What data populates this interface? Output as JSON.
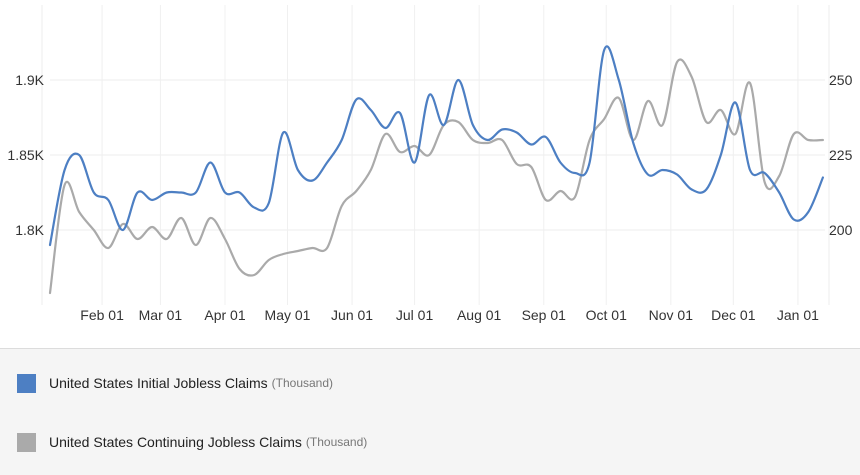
{
  "chart_data": {
    "type": "line",
    "title": "",
    "xlabel": "",
    "ylabel": "",
    "grid": true,
    "x_tick_labels": [
      "Feb 01",
      "Mar 01",
      "Apr 01",
      "May 01",
      "Jun 01",
      "Jul 01",
      "Aug 01",
      "Sep 01",
      "Oct 01",
      "Nov 01",
      "Dec 01",
      "Jan 01"
    ],
    "x_ticks": [
      "2023-02-01",
      "2023-03-01",
      "2023-04-01",
      "2023-05-01",
      "2023-06-01",
      "2023-07-01",
      "2023-08-01",
      "2023-09-01",
      "2023-10-01",
      "2023-11-01",
      "2023-12-01",
      "2024-01-01"
    ],
    "x_range": [
      "2023-01-07",
      "2024-01-14"
    ],
    "left_axis": {
      "ylim": [
        1.75,
        1.95
      ],
      "ticks": [
        1.8,
        1.85,
        1.9
      ],
      "tick_labels": [
        "1.8K",
        "1.85K",
        "1.9K"
      ]
    },
    "right_axis": {
      "ylim": [
        175,
        275
      ],
      "ticks": [
        200,
        225,
        250
      ],
      "tick_labels": [
        "200",
        "225",
        "250"
      ]
    },
    "series": [
      {
        "name": "United States Initial Jobless Claims",
        "unit": "(Thousand)",
        "axis": "left",
        "color": "#4d7fc3",
        "dates": [
          "2023-01-07",
          "2023-01-14",
          "2023-01-21",
          "2023-01-28",
          "2023-02-04",
          "2023-02-11",
          "2023-02-18",
          "2023-02-25",
          "2023-03-04",
          "2023-03-11",
          "2023-03-18",
          "2023-03-25",
          "2023-04-01",
          "2023-04-08",
          "2023-04-15",
          "2023-04-22",
          "2023-04-29",
          "2023-05-06",
          "2023-05-13",
          "2023-05-20",
          "2023-05-27",
          "2023-06-03",
          "2023-06-10",
          "2023-06-17",
          "2023-06-24",
          "2023-07-01",
          "2023-07-08",
          "2023-07-15",
          "2023-07-22",
          "2023-07-29",
          "2023-08-05",
          "2023-08-12",
          "2023-08-19",
          "2023-08-26",
          "2023-09-02",
          "2023-09-09",
          "2023-09-16",
          "2023-09-23",
          "2023-09-30",
          "2023-10-07",
          "2023-10-14",
          "2023-10-21",
          "2023-10-28",
          "2023-11-04",
          "2023-11-11",
          "2023-11-18",
          "2023-11-25",
          "2023-12-02",
          "2023-12-09",
          "2023-12-16",
          "2023-12-23",
          "2023-12-30",
          "2024-01-06",
          "2024-01-13"
        ],
        "values": [
          1.79,
          1.84,
          1.85,
          1.825,
          1.82,
          1.8,
          1.825,
          1.82,
          1.825,
          1.825,
          1.825,
          1.845,
          1.825,
          1.825,
          1.815,
          1.818,
          1.865,
          1.84,
          1.833,
          1.845,
          1.86,
          1.887,
          1.88,
          1.868,
          1.878,
          1.845,
          1.89,
          1.87,
          1.9,
          1.87,
          1.86,
          1.867,
          1.865,
          1.857,
          1.862,
          1.845,
          1.838,
          1.845,
          1.92,
          1.9,
          1.858,
          1.837,
          1.84,
          1.837,
          1.827,
          1.827,
          1.85,
          1.885,
          1.84,
          1.838,
          1.825,
          1.807,
          1.812,
          1.835
        ]
      },
      {
        "name": "United States Continuing Jobless Claims",
        "unit": "(Thousand)",
        "axis": "right",
        "color": "#aaaaaa",
        "dates": [
          "2023-01-07",
          "2023-01-14",
          "2023-01-21",
          "2023-01-28",
          "2023-02-04",
          "2023-02-11",
          "2023-02-18",
          "2023-02-25",
          "2023-03-04",
          "2023-03-11",
          "2023-03-18",
          "2023-03-25",
          "2023-04-01",
          "2023-04-08",
          "2023-04-15",
          "2023-04-22",
          "2023-04-29",
          "2023-05-06",
          "2023-05-13",
          "2023-05-20",
          "2023-05-27",
          "2023-06-03",
          "2023-06-10",
          "2023-06-17",
          "2023-06-24",
          "2023-07-01",
          "2023-07-08",
          "2023-07-15",
          "2023-07-22",
          "2023-07-29",
          "2023-08-05",
          "2023-08-12",
          "2023-08-19",
          "2023-08-26",
          "2023-09-02",
          "2023-09-09",
          "2023-09-16",
          "2023-09-23",
          "2023-09-30",
          "2023-10-07",
          "2023-10-14",
          "2023-10-21",
          "2023-10-28",
          "2023-11-04",
          "2023-11-11",
          "2023-11-18",
          "2023-11-25",
          "2023-12-02",
          "2023-12-09",
          "2023-12-16",
          "2023-12-23",
          "2023-12-30",
          "2024-01-06",
          "2024-01-13"
        ],
        "values": [
          179,
          215,
          206,
          200,
          194,
          202,
          197,
          201,
          197,
          204,
          195,
          204,
          197,
          187,
          185,
          190,
          192,
          193,
          194,
          194,
          208,
          213,
          220,
          232,
          226,
          228,
          225,
          235,
          236,
          230,
          229,
          230,
          222,
          221,
          210,
          213,
          211,
          230,
          237,
          244,
          230,
          243,
          235,
          256,
          251,
          236,
          240,
          232,
          249,
          216,
          218,
          232,
          230,
          230
        ]
      }
    ]
  }
}
